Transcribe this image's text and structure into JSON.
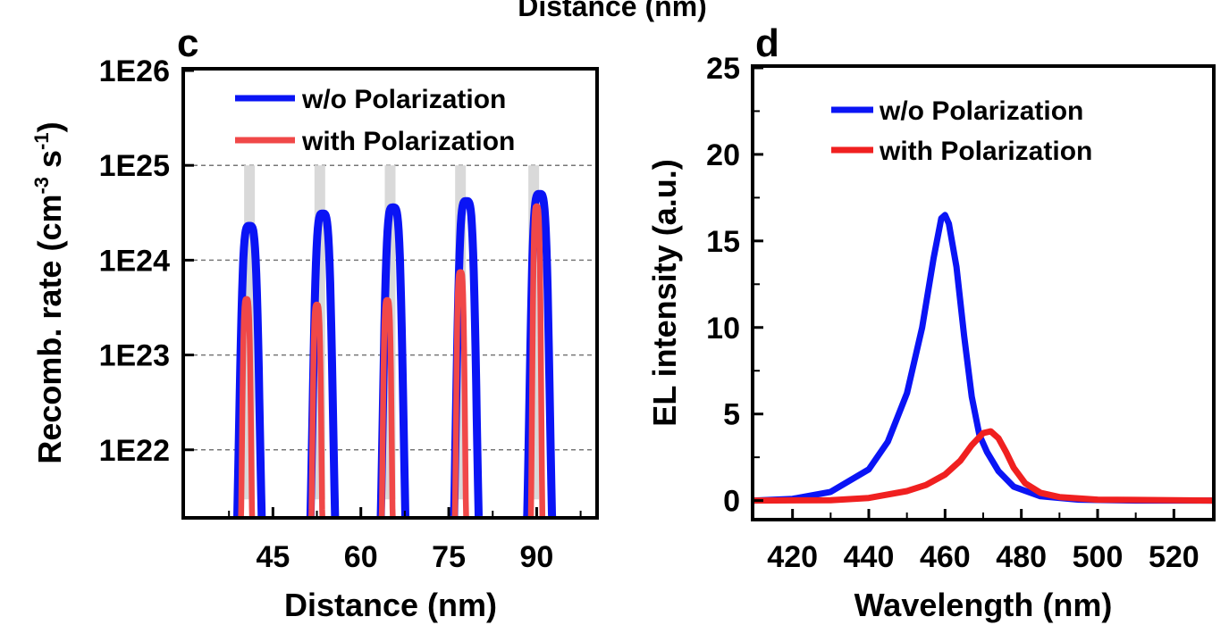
{
  "top_cut_label": "Distance (nm)",
  "chart_data": [
    {
      "panel": "c",
      "type": "line",
      "xlabel": "Distance (nm)",
      "ylabel": "Recomb. rate (cm",
      "ylabel_sup1": "-3",
      "ylabel_mid": " s",
      "ylabel_sup2": "-1",
      "ylabel_end": ")",
      "yscale": "log",
      "xlim": [
        30,
        100
      ],
      "ylim": [
        2e+21,
        1e+26
      ],
      "x_ticks": [
        45,
        60,
        75,
        90
      ],
      "y_ticks": [
        1e+22,
        1e+23,
        1e+24,
        1e+25,
        1e+26
      ],
      "y_tick_labels": [
        "1E22",
        "1E23",
        "1E24",
        "1E25",
        "1E26"
      ],
      "grid": "dashed horizontal at decades",
      "legend_position": "top-left",
      "wells": [
        41,
        53,
        65,
        77,
        89.5
      ],
      "series": [
        {
          "name": "w/o Polarization",
          "color": "#0a14f5",
          "peaks": [
            {
              "x": 41.0,
              "y": 2.3e+24
            },
            {
              "x": 53.5,
              "y": 3.1e+24
            },
            {
              "x": 65.5,
              "y": 3.6e+24
            },
            {
              "x": 78.0,
              "y": 4.2e+24
            },
            {
              "x": 90.5,
              "y": 5e+24
            }
          ]
        },
        {
          "name": "with Polarization",
          "color": "#f04848",
          "peaks": [
            {
              "x": 40.5,
              "y": 3.9e+23
            },
            {
              "x": 52.5,
              "y": 3.4e+23
            },
            {
              "x": 64.5,
              "y": 3.8e+23
            },
            {
              "x": 77.0,
              "y": 7.5e+23
            },
            {
              "x": 90.0,
              "y": 3.7e+24
            }
          ]
        }
      ]
    },
    {
      "panel": "d",
      "type": "line",
      "xlabel": "Wavelength (nm)",
      "ylabel": "EL intensity (a.u.)",
      "xlim": [
        410,
        530
      ],
      "ylim": [
        -1,
        25
      ],
      "x_ticks": [
        420,
        440,
        460,
        480,
        500,
        520
      ],
      "y_ticks": [
        0,
        5,
        10,
        15,
        20,
        25
      ],
      "grid": "off",
      "legend_position": "top-center",
      "series": [
        {
          "name": "w/o Polarization",
          "color": "#0a14f5",
          "points": [
            [
              410,
              0
            ],
            [
              420,
              0.1
            ],
            [
              430,
              0.5
            ],
            [
              440,
              1.8
            ],
            [
              445,
              3.4
            ],
            [
              450,
              6.2
            ],
            [
              454,
              10.0
            ],
            [
              457,
              14.0
            ],
            [
              459,
              16.3
            ],
            [
              460,
              16.5
            ],
            [
              461,
              16.0
            ],
            [
              463,
              13.5
            ],
            [
              465,
              9.5
            ],
            [
              467,
              6.0
            ],
            [
              469,
              3.8
            ],
            [
              471,
              2.8
            ],
            [
              474,
              1.7
            ],
            [
              478,
              0.8
            ],
            [
              485,
              0.25
            ],
            [
              495,
              0.05
            ],
            [
              510,
              0
            ],
            [
              530,
              0
            ]
          ]
        },
        {
          "name": "with Polarization",
          "color": "#f02020",
          "points": [
            [
              410,
              0
            ],
            [
              430,
              0.02
            ],
            [
              440,
              0.15
            ],
            [
              450,
              0.55
            ],
            [
              455,
              0.9
            ],
            [
              460,
              1.5
            ],
            [
              464,
              2.3
            ],
            [
              467,
              3.2
            ],
            [
              470,
              3.9
            ],
            [
              472,
              4.0
            ],
            [
              474,
              3.6
            ],
            [
              476,
              2.8
            ],
            [
              478,
              1.9
            ],
            [
              481,
              1.0
            ],
            [
              485,
              0.45
            ],
            [
              490,
              0.2
            ],
            [
              500,
              0.05
            ],
            [
              530,
              0
            ]
          ]
        }
      ]
    }
  ]
}
